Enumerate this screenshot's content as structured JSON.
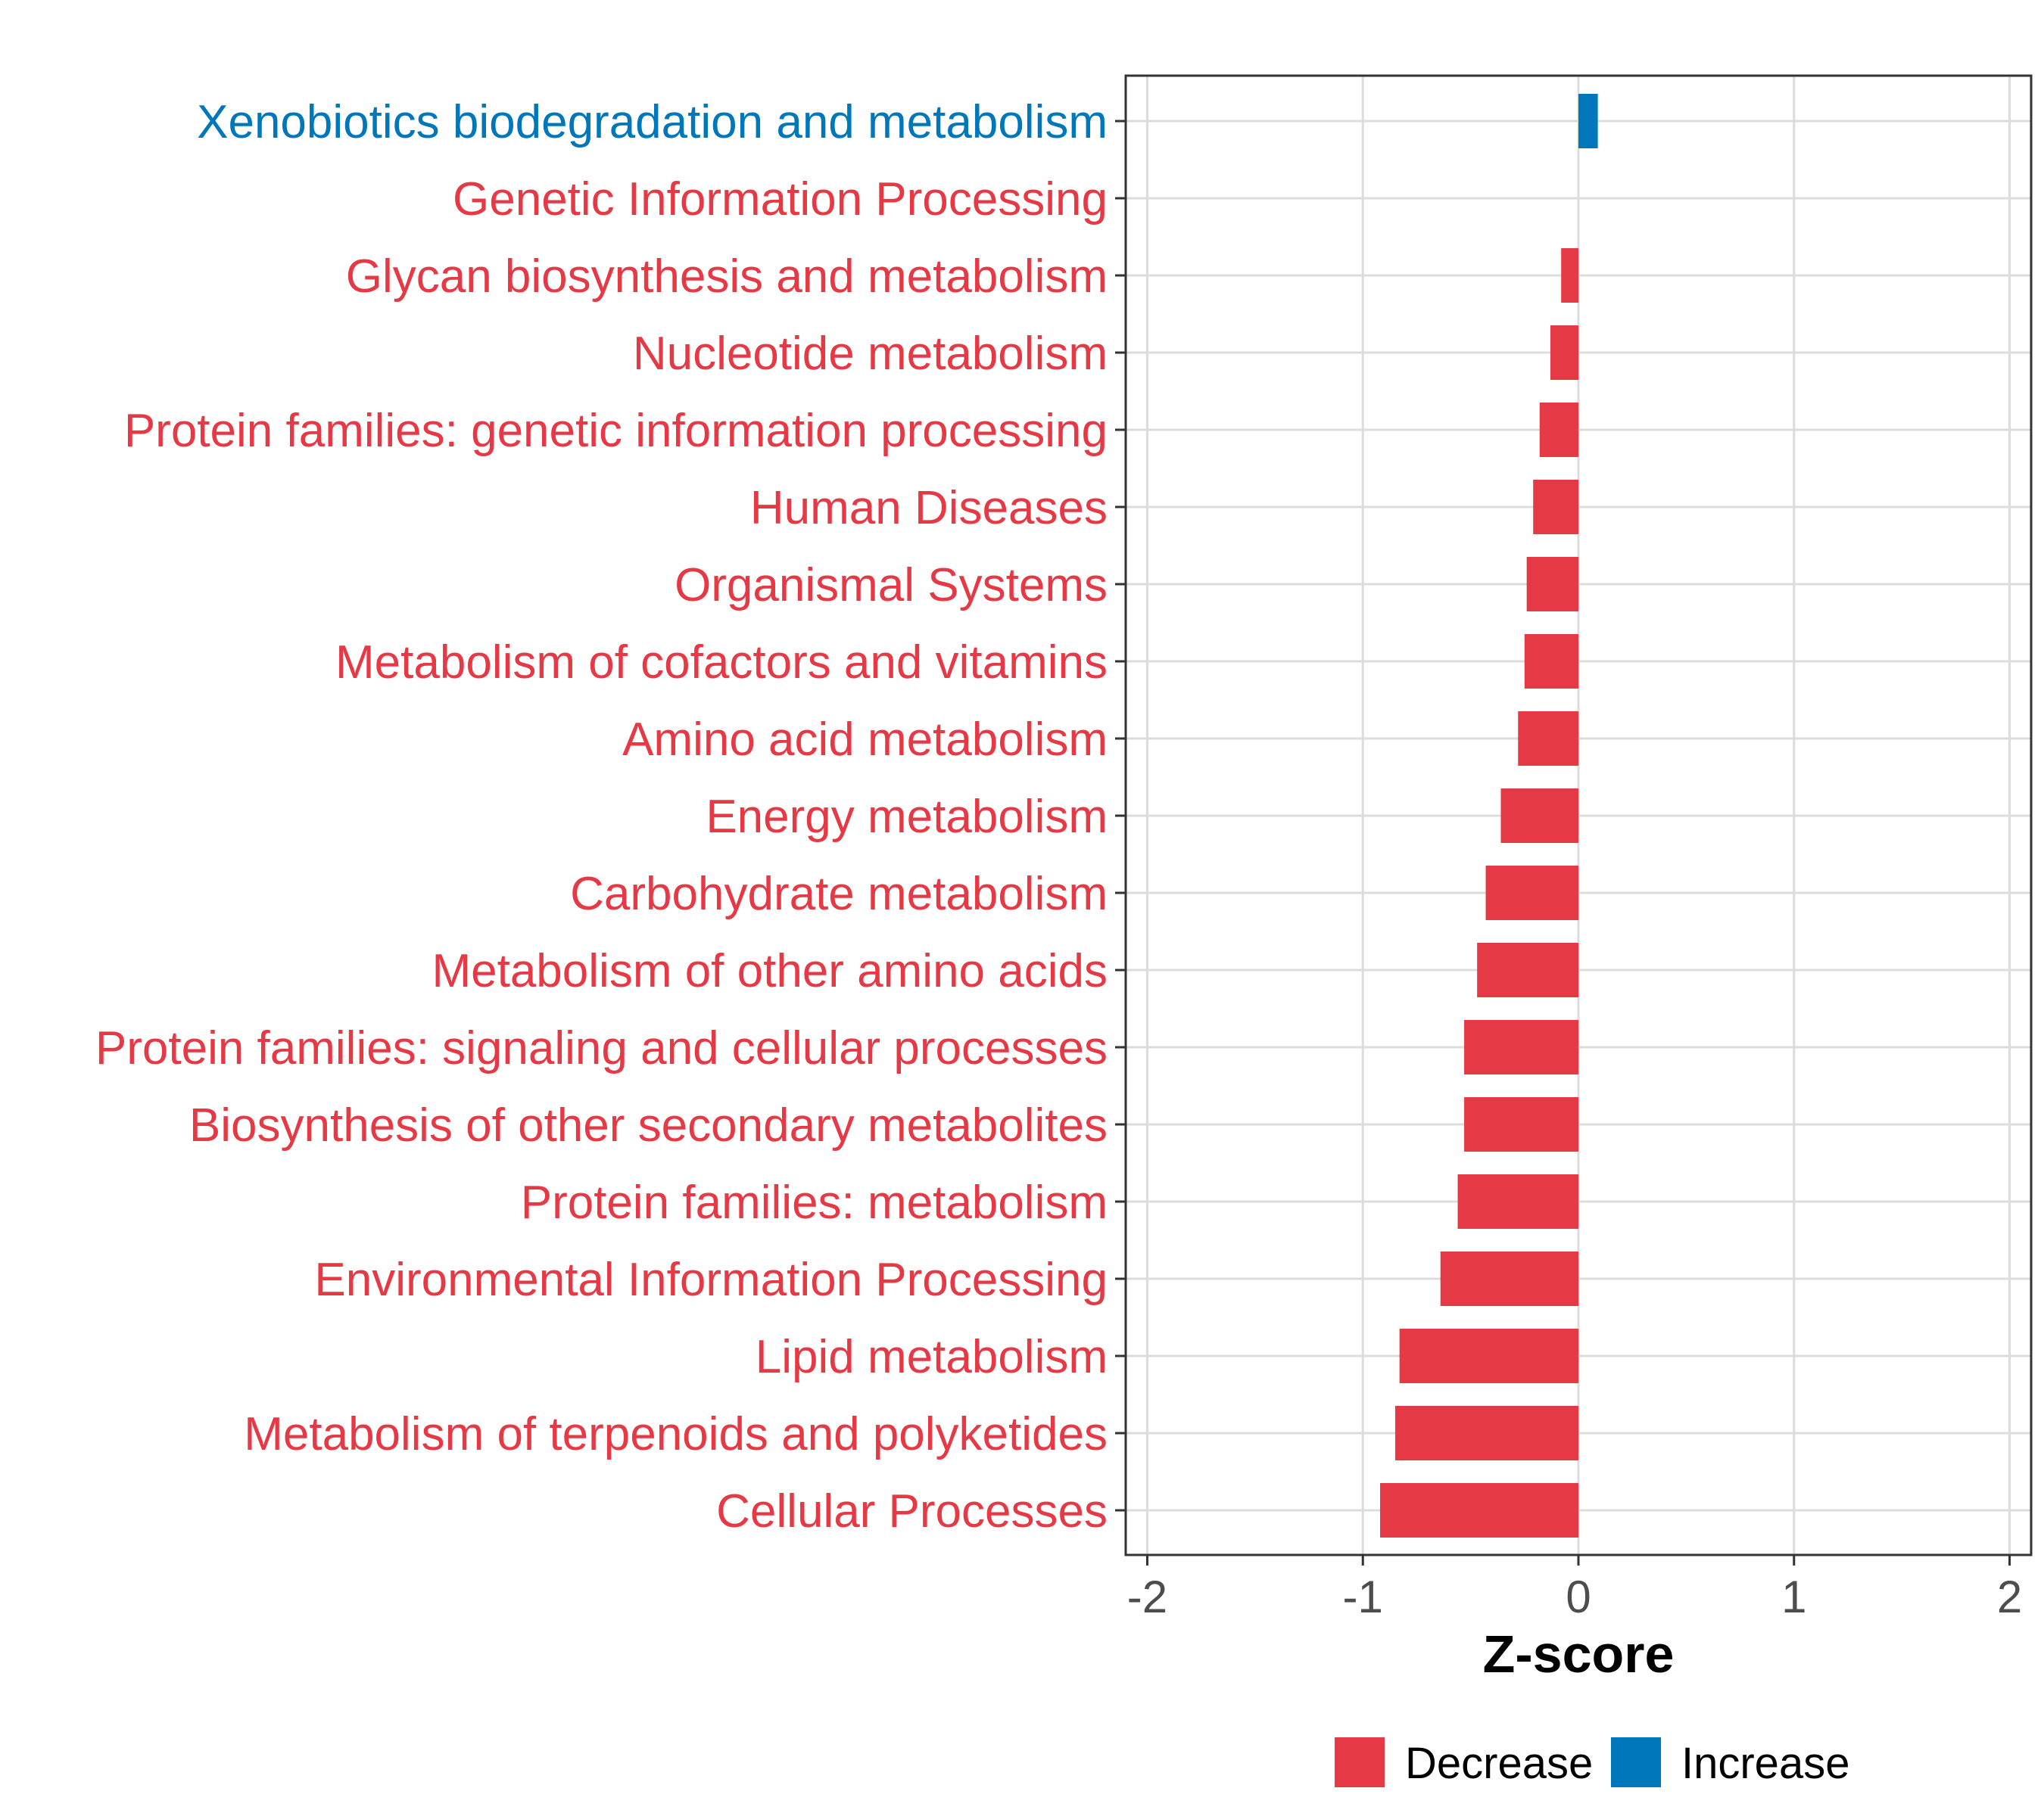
{
  "chart_data": {
    "type": "bar",
    "orientation": "horizontal",
    "xlabel": "Z-score",
    "xlim": [
      -2.1,
      2.1
    ],
    "xticks": [
      -2,
      -1,
      0,
      1,
      2
    ],
    "xtick_labels": [
      "-2",
      "-1",
      "0",
      "1",
      "2"
    ],
    "grid": true,
    "categories": [
      "Xenobiotics biodegradation and metabolism",
      "Genetic Information Processing",
      "Glycan biosynthesis and metabolism",
      "Nucleotide metabolism",
      "Protein families: genetic information processing",
      "Human Diseases",
      "Organismal Systems",
      "Metabolism of cofactors and vitamins",
      "Amino acid metabolism",
      "Energy metabolism",
      "Carbohydrate metabolism",
      "Metabolism of other amino acids",
      "Protein families: signaling and cellular processes",
      "Biosynthesis of other secondary metabolites",
      "Protein families: metabolism",
      "Environmental Information Processing",
      "Lipid metabolism",
      "Metabolism of terpenoids and polyketides",
      "Cellular Processes"
    ],
    "values": [
      0.09,
      0.0,
      -0.08,
      -0.13,
      -0.18,
      -0.21,
      -0.24,
      -0.25,
      -0.28,
      -0.36,
      -0.43,
      -0.47,
      -0.53,
      -0.53,
      -0.56,
      -0.64,
      -0.83,
      -0.85,
      -0.92
    ],
    "groups": [
      "Increase",
      "Decrease",
      "Decrease",
      "Decrease",
      "Decrease",
      "Decrease",
      "Decrease",
      "Decrease",
      "Decrease",
      "Decrease",
      "Decrease",
      "Decrease",
      "Decrease",
      "Decrease",
      "Decrease",
      "Decrease",
      "Decrease",
      "Decrease",
      "Decrease"
    ],
    "legend": {
      "position": "bottom",
      "entries": [
        {
          "label": "Decrease",
          "color": "#E63946"
        },
        {
          "label": "Increase",
          "color": "#0077BB"
        }
      ]
    }
  }
}
